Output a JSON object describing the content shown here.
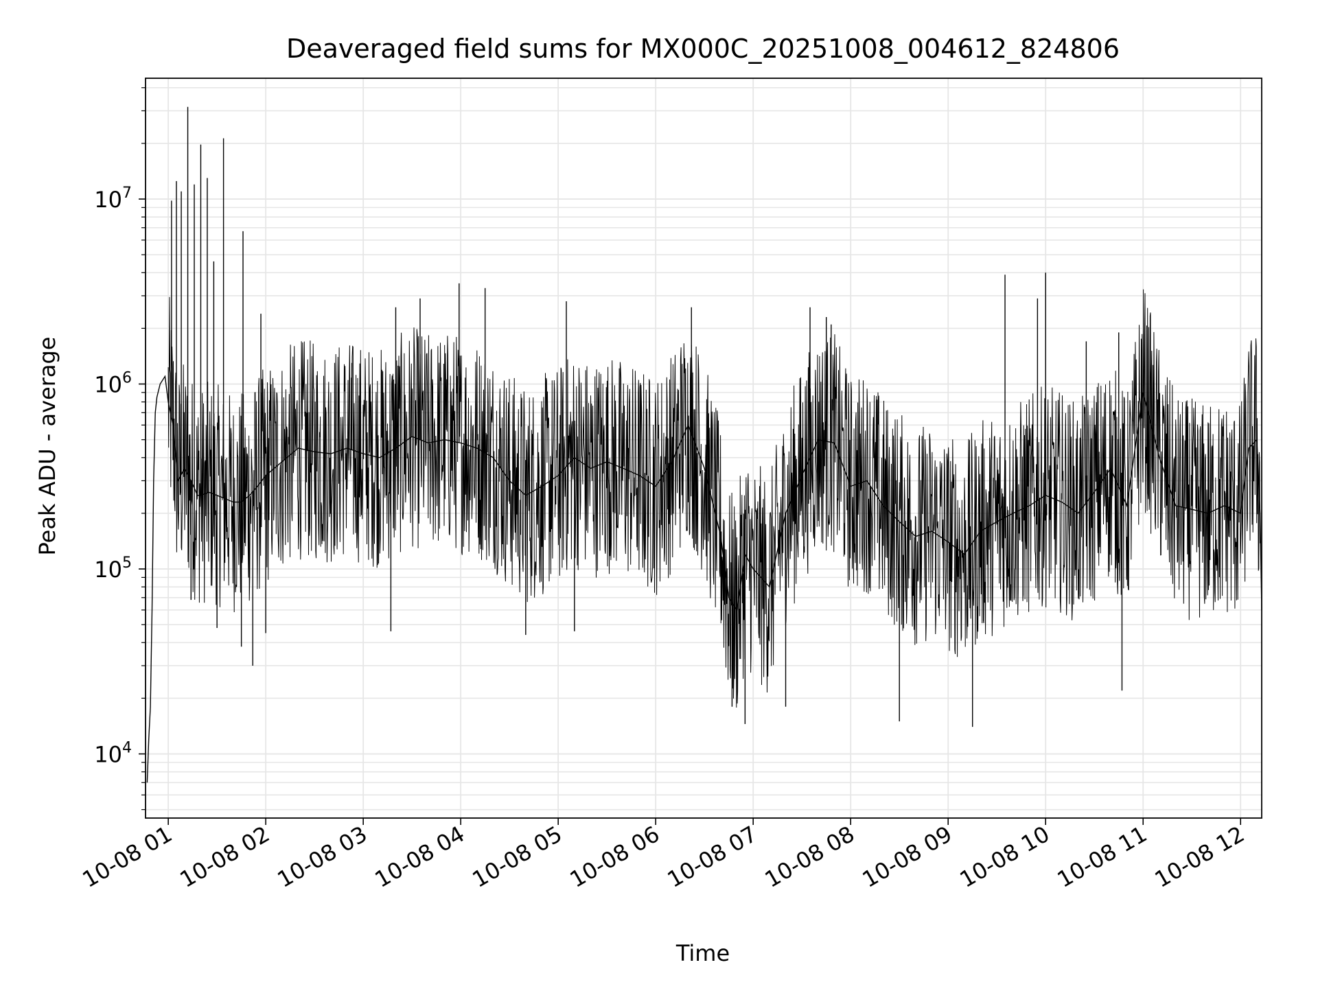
{
  "chart_data": {
    "type": "line",
    "title": "Deaveraged field sums for MX000C_20251008_004612_824806",
    "xlabel": "Time",
    "ylabel": "Peak ADU - average",
    "yscale": "log",
    "ylim": [
      4500,
      45000000
    ],
    "xlim": [
      "2025-10-08 00:46",
      "2025-10-08 12:13"
    ],
    "y_ticks": [
      {
        "value": 10000,
        "base": "10",
        "exp": "4"
      },
      {
        "value": 100000,
        "base": "10",
        "exp": "5"
      },
      {
        "value": 1000000,
        "base": "10",
        "exp": "6"
      },
      {
        "value": 10000000,
        "base": "10",
        "exp": "7"
      }
    ],
    "x_ticks": [
      {
        "value": "2025-10-08 01:00",
        "label": "10-08 01"
      },
      {
        "value": "2025-10-08 02:00",
        "label": "10-08 02"
      },
      {
        "value": "2025-10-08 03:00",
        "label": "10-08 03"
      },
      {
        "value": "2025-10-08 04:00",
        "label": "10-08 04"
      },
      {
        "value": "2025-10-08 05:00",
        "label": "10-08 05"
      },
      {
        "value": "2025-10-08 06:00",
        "label": "10-08 06"
      },
      {
        "value": "2025-10-08 07:00",
        "label": "10-08 07"
      },
      {
        "value": "2025-10-08 08:00",
        "label": "10-08 08"
      },
      {
        "value": "2025-10-08 09:00",
        "label": "10-08 09"
      },
      {
        "value": "2025-10-08 10:00",
        "label": "10-08 10"
      },
      {
        "value": "2025-10-08 11:00",
        "label": "10-08 11"
      },
      {
        "value": "2025-10-08 12:00",
        "label": "10-08 12"
      }
    ],
    "grid": true,
    "line_color": "#000000",
    "grid_color": "#e6e6e6",
    "series": [
      {
        "x": [
          "2025-10-08 00:47",
          "2025-10-08 00:48",
          "2025-10-08 00:49",
          "2025-10-08 00:50",
          "2025-10-08 00:51",
          "2025-10-08 00:52",
          "2025-10-08 00:53",
          "2025-10-08 00:55",
          "2025-10-08 00:58",
          "2025-10-08 01:00",
          "2025-10-08 01:03",
          "2025-10-08 01:06",
          "2025-10-08 01:10",
          "2025-10-08 01:14",
          "2025-10-08 01:18",
          "2025-10-08 01:20",
          "2025-10-08 01:25",
          "2025-10-08 01:30",
          "2025-10-08 01:35",
          "2025-10-08 01:40",
          "2025-10-08 01:45",
          "2025-10-08 01:50",
          "2025-10-08 01:55",
          "2025-10-08 02:00",
          "2025-10-08 02:10",
          "2025-10-08 02:20",
          "2025-10-08 02:30",
          "2025-10-08 02:40",
          "2025-10-08 02:50",
          "2025-10-08 03:00",
          "2025-10-08 03:10",
          "2025-10-08 03:20",
          "2025-10-08 03:30",
          "2025-10-08 03:40",
          "2025-10-08 03:50",
          "2025-10-08 04:00",
          "2025-10-08 04:10",
          "2025-10-08 04:20",
          "2025-10-08 04:30",
          "2025-10-08 04:40",
          "2025-10-08 04:50",
          "2025-10-08 05:00",
          "2025-10-08 05:10",
          "2025-10-08 05:20",
          "2025-10-08 05:30",
          "2025-10-08 05:40",
          "2025-10-08 05:50",
          "2025-10-08 06:00",
          "2025-10-08 06:10",
          "2025-10-08 06:20",
          "2025-10-08 06:30",
          "2025-10-08 06:40",
          "2025-10-08 06:45",
          "2025-10-08 06:50",
          "2025-10-08 06:55",
          "2025-10-08 07:00",
          "2025-10-08 07:10",
          "2025-10-08 07:20",
          "2025-10-08 07:30",
          "2025-10-08 07:40",
          "2025-10-08 07:50",
          "2025-10-08 08:00",
          "2025-10-08 08:10",
          "2025-10-08 08:20",
          "2025-10-08 08:30",
          "2025-10-08 08:40",
          "2025-10-08 08:50",
          "2025-10-08 09:00",
          "2025-10-08 09:10",
          "2025-10-08 09:20",
          "2025-10-08 09:30",
          "2025-10-08 09:40",
          "2025-10-08 09:50",
          "2025-10-08 10:00",
          "2025-10-08 10:10",
          "2025-10-08 10:20",
          "2025-10-08 10:30",
          "2025-10-08 10:40",
          "2025-10-08 10:50",
          "2025-10-08 11:00",
          "2025-10-08 11:10",
          "2025-10-08 11:20",
          "2025-10-08 11:30",
          "2025-10-08 11:40",
          "2025-10-08 11:50",
          "2025-10-08 12:00",
          "2025-10-08 12:05",
          "2025-10-08 12:10",
          "2025-10-08 12:12",
          "2025-10-08 12:13"
        ],
        "values": [
          7000,
          12000,
          18000,
          60000,
          300000,
          700000,
          850000,
          1000000,
          1100000,
          800000,
          600000,
          300000,
          350000,
          300000,
          250000,
          250000,
          260000,
          250000,
          240000,
          230000,
          230000,
          250000,
          280000,
          320000,
          380000,
          450000,
          430000,
          420000,
          450000,
          420000,
          400000,
          450000,
          520000,
          480000,
          500000,
          480000,
          450000,
          400000,
          300000,
          250000,
          280000,
          320000,
          400000,
          350000,
          380000,
          350000,
          320000,
          280000,
          380000,
          600000,
          350000,
          150000,
          70000,
          60000,
          120000,
          100000,
          80000,
          200000,
          320000,
          500000,
          480000,
          280000,
          300000,
          220000,
          180000,
          150000,
          160000,
          140000,
          120000,
          160000,
          180000,
          200000,
          220000,
          250000,
          230000,
          200000,
          260000,
          350000,
          220000,
          900000,
          400000,
          220000,
          210000,
          200000,
          220000,
          200000,
          450000,
          500000,
          200000,
          60000
        ]
      }
    ],
    "peaks": [
      {
        "x": "2025-10-08 01:02",
        "y": 9800000
      },
      {
        "x": "2025-10-08 01:05",
        "y": 12500000
      },
      {
        "x": "2025-10-08 01:08",
        "y": 11000000
      },
      {
        "x": "2025-10-08 01:12",
        "y": 31500000
      },
      {
        "x": "2025-10-08 01:16",
        "y": 12000000
      },
      {
        "x": "2025-10-08 01:20",
        "y": 19700000
      },
      {
        "x": "2025-10-08 01:24",
        "y": 13000000
      },
      {
        "x": "2025-10-08 01:28",
        "y": 4600000
      },
      {
        "x": "2025-10-08 01:34",
        "y": 21300000
      },
      {
        "x": "2025-10-08 01:46",
        "y": 6700000
      },
      {
        "x": "2025-10-08 01:57",
        "y": 2400000
      },
      {
        "x": "2025-10-08 02:53",
        "y": 1300000
      },
      {
        "x": "2025-10-08 03:20",
        "y": 2600000
      },
      {
        "x": "2025-10-08 03:35",
        "y": 2900000
      },
      {
        "x": "2025-10-08 03:59",
        "y": 3500000
      },
      {
        "x": "2025-10-08 04:15",
        "y": 3300000
      },
      {
        "x": "2025-10-08 05:05",
        "y": 2800000
      },
      {
        "x": "2025-10-08 06:22",
        "y": 2600000
      },
      {
        "x": "2025-10-08 07:35",
        "y": 2600000
      },
      {
        "x": "2025-10-08 07:45",
        "y": 2300000
      },
      {
        "x": "2025-10-08 07:48",
        "y": 2100000
      },
      {
        "x": "2025-10-08 09:35",
        "y": 3900000
      },
      {
        "x": "2025-10-08 09:55",
        "y": 2900000
      },
      {
        "x": "2025-10-08 10:00",
        "y": 4000000
      },
      {
        "x": "2025-10-08 10:25",
        "y": 1700000
      },
      {
        "x": "2025-10-08 10:45",
        "y": 1900000
      }
    ],
    "dips": [
      {
        "x": "2025-10-08 01:14",
        "y": 68000
      },
      {
        "x": "2025-10-08 01:30",
        "y": 48000
      },
      {
        "x": "2025-10-08 01:45",
        "y": 38000
      },
      {
        "x": "2025-10-08 01:52",
        "y": 30000
      },
      {
        "x": "2025-10-08 02:00",
        "y": 45000
      },
      {
        "x": "2025-10-08 03:17",
        "y": 46000
      },
      {
        "x": "2025-10-08 04:40",
        "y": 44000
      },
      {
        "x": "2025-10-08 05:10",
        "y": 46000
      },
      {
        "x": "2025-10-08 06:47",
        "y": 18000
      },
      {
        "x": "2025-10-08 06:55",
        "y": 14500
      },
      {
        "x": "2025-10-08 07:20",
        "y": 18000
      },
      {
        "x": "2025-10-08 08:30",
        "y": 15000
      },
      {
        "x": "2025-10-08 09:15",
        "y": 14000
      },
      {
        "x": "2025-10-08 10:47",
        "y": 22000
      }
    ]
  }
}
